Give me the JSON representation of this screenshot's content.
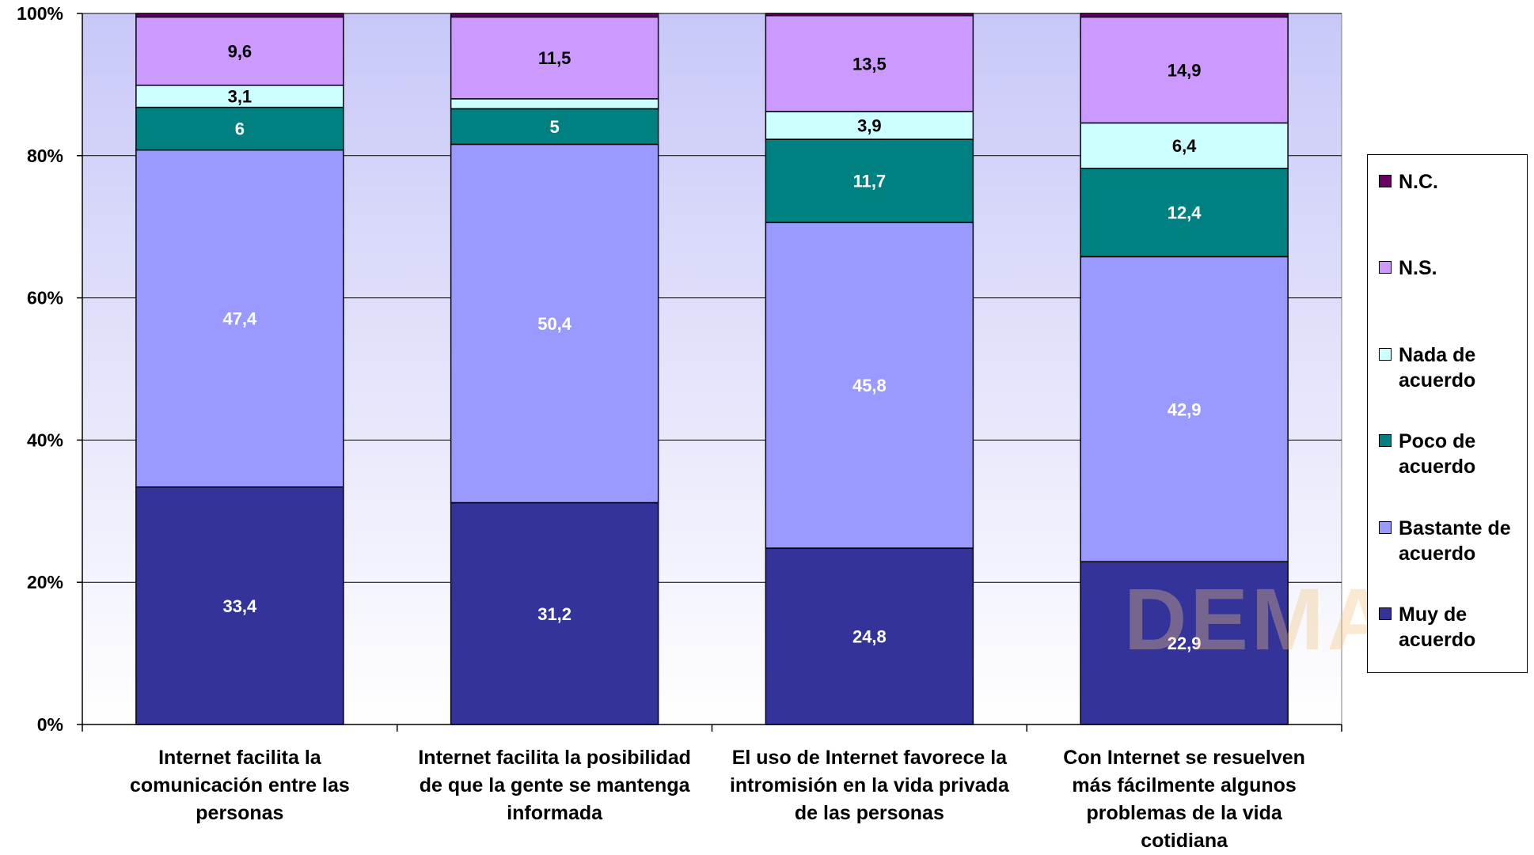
{
  "chart_data": {
    "type": "bar",
    "stacked": true,
    "percent_stacked": true,
    "categories": [
      "Internet facilita la comunicación entre las personas",
      "Internet facilita la posibilidad de que la gente se mantenga informada",
      "El uso de Internet favorece la intromisión en la vida privada de las personas",
      "Con Internet se resuelven más fácilmente algunos problemas de la vida cotidiana"
    ],
    "series": [
      {
        "name": "Muy de acuerdo",
        "values": [
          33.4,
          31.2,
          24.8,
          22.9
        ],
        "labels": [
          "33,4",
          "31,2",
          "24,8",
          "22,9"
        ],
        "color": "#333399",
        "label_color": "#ffffff"
      },
      {
        "name": "Bastante de acuerdo",
        "values": [
          47.4,
          50.4,
          45.8,
          42.9
        ],
        "labels": [
          "47,4",
          "50,4",
          "45,8",
          "42,9"
        ],
        "color": "#9999ff",
        "label_color": "#ffffff"
      },
      {
        "name": "Poco de acuerdo",
        "values": [
          6,
          5,
          11.7,
          12.4
        ],
        "labels": [
          "6",
          "5",
          "11,7",
          "12,4"
        ],
        "color": "#008080",
        "label_color": "#ffffff"
      },
      {
        "name": "Nada de acuerdo",
        "values": [
          3.1,
          1.4,
          3.9,
          6.4
        ],
        "labels": [
          "3,1",
          "",
          "3,9",
          "6,4"
        ],
        "color": "#ccffff",
        "label_color": "#000000"
      },
      {
        "name": "N.S.",
        "values": [
          9.6,
          11.5,
          13.5,
          14.9
        ],
        "labels": [
          "9,6",
          "11,5",
          "13,5",
          "14,9"
        ],
        "color": "#cc99ff",
        "label_color": "#000000"
      },
      {
        "name": "N.C.",
        "values": [
          0.5,
          0.5,
          0.3,
          0.5
        ],
        "labels": [
          "",
          "",
          "",
          ""
        ],
        "color": "#660066",
        "label_color": "#ffffff"
      }
    ],
    "y_ticks": [
      "0%",
      "20%",
      "40%",
      "60%",
      "80%",
      "100%"
    ],
    "ylim": [
      0,
      100
    ],
    "grid": true,
    "legend_position": "right",
    "legend_order": [
      "N.C.",
      "N.S.",
      "Nada de acuerdo",
      "Poco de acuerdo",
      "Bastante de acuerdo",
      "Muy de acuerdo"
    ],
    "category_label_lines": [
      [
        "Internet facilita la",
        "comunicación entre las",
        "personas"
      ],
      [
        "Internet facilita la posibilidad",
        "de que la gente se mantenga",
        "informada"
      ],
      [
        "El uso de Internet favorece la",
        "intromisión en la vida privada",
        "de las personas"
      ],
      [
        "Con Internet se resuelven",
        "más fácilmente algunos",
        "problemas de la vida",
        "cotidiana"
      ]
    ],
    "legend_label_lines": [
      [
        "N.C."
      ],
      [
        "N.S."
      ],
      [
        "Nada de",
        "acuerdo"
      ],
      [
        "Poco de",
        "acuerdo"
      ],
      [
        "Bastante de",
        "acuerdo"
      ],
      [
        "Muy de",
        "acuerdo"
      ]
    ],
    "watermark_lines": [
      "DEMAIN"
    ]
  }
}
